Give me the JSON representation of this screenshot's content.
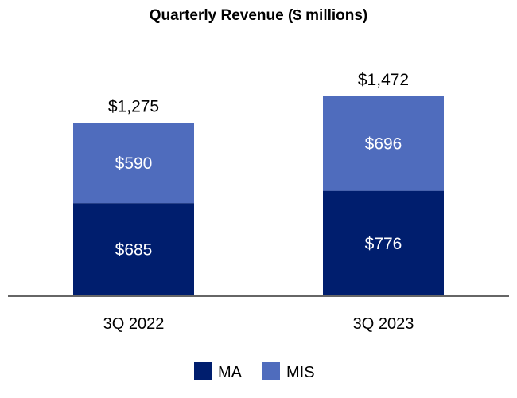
{
  "chart_data": {
    "type": "bar",
    "stacked": true,
    "title": "Quarterly Revenue ($ millions)",
    "categories": [
      "3Q 2022",
      "3Q 2023"
    ],
    "series": [
      {
        "name": "MA",
        "values": [
          685,
          776
        ],
        "labels": [
          "$685",
          "$776"
        ],
        "color": "#001e6e"
      },
      {
        "name": "MIS",
        "values": [
          590,
          696
        ],
        "labels": [
          "$590",
          "$696"
        ],
        "color": "#4f6cbd"
      }
    ],
    "totals": [
      1275,
      1472
    ],
    "total_labels": [
      "$1,275",
      "$1,472"
    ],
    "ylim": [
      0,
      1700
    ],
    "grid": false,
    "legend_position": "bottom"
  }
}
